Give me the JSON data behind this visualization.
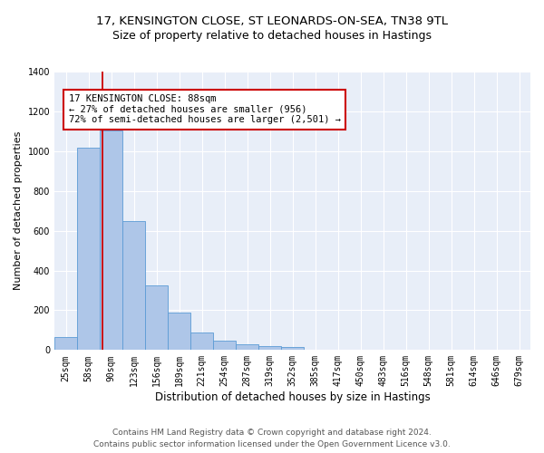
{
  "title1": "17, KENSINGTON CLOSE, ST LEONARDS-ON-SEA, TN38 9TL",
  "title2": "Size of property relative to detached houses in Hastings",
  "xlabel": "Distribution of detached houses by size in Hastings",
  "ylabel": "Number of detached properties",
  "footer1": "Contains HM Land Registry data © Crown copyright and database right 2024.",
  "footer2": "Contains public sector information licensed under the Open Government Licence v3.0.",
  "annotation_line1": "17 KENSINGTON CLOSE: 88sqm",
  "annotation_line2": "← 27% of detached houses are smaller (956)",
  "annotation_line3": "72% of semi-detached houses are larger (2,501) →",
  "bar_color": "#aec6e8",
  "bar_edge_color": "#5b9bd5",
  "vline_color": "#cc0000",
  "annotation_box_edge": "#cc0000",
  "background_color": "#e8eef8",
  "categories": [
    "25sqm",
    "58sqm",
    "90sqm",
    "123sqm",
    "156sqm",
    "189sqm",
    "221sqm",
    "254sqm",
    "287sqm",
    "319sqm",
    "352sqm",
    "385sqm",
    "417sqm",
    "450sqm",
    "483sqm",
    "516sqm",
    "548sqm",
    "581sqm",
    "614sqm",
    "646sqm",
    "679sqm"
  ],
  "bar_heights": [
    65,
    1018,
    1103,
    648,
    327,
    188,
    90,
    45,
    28,
    22,
    17,
    0,
    0,
    0,
    0,
    0,
    0,
    0,
    0,
    0,
    0
  ],
  "ylim": [
    0,
    1400
  ],
  "yticks": [
    0,
    200,
    400,
    600,
    800,
    1000,
    1200,
    1400
  ],
  "vline_x": 1.63,
  "title1_fontsize": 9.5,
  "title2_fontsize": 9,
  "xlabel_fontsize": 8.5,
  "ylabel_fontsize": 8,
  "tick_fontsize": 7,
  "annotation_fontsize": 7.5,
  "footer_fontsize": 6.5
}
